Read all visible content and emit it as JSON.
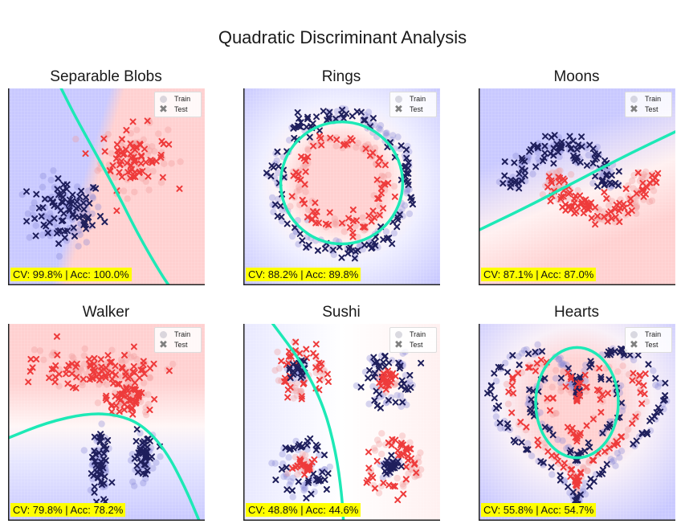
{
  "suptitle": "Quadratic Discriminant Analysis",
  "legend": {
    "train": "Train",
    "test": "Test"
  },
  "colors": {
    "class0": "#1f1f5c",
    "class1": "#ee3b3b",
    "train0": "#8a8ad8",
    "train1": "#f29a9a",
    "boundary": "#1de9b6",
    "score_bg": "#ffff00",
    "bg_blue": "#c8c8ff",
    "bg_red": "#ffd0d0"
  },
  "chart_data": [
    {
      "name": "blobs",
      "type": "scatter",
      "title": "Separable Blobs",
      "score": "CV: 99.8% | Acc: 100.0%",
      "xlim": [
        0,
        1
      ],
      "ylim": [
        0,
        1
      ],
      "clusters": [
        {
          "cls": 0,
          "shape": "blob",
          "cx": 0.29,
          "cy": 0.37,
          "rx": 0.19,
          "ry": 0.17
        },
        {
          "cls": 1,
          "shape": "blob",
          "cx": 0.64,
          "cy": 0.65,
          "rx": 0.17,
          "ry": 0.16
        }
      ],
      "boundary": [
        [
          0.27,
          1.0
        ],
        [
          0.34,
          0.86
        ],
        [
          0.44,
          0.68
        ],
        [
          0.55,
          0.48
        ],
        [
          0.66,
          0.26
        ],
        [
          0.77,
          0.07
        ],
        [
          0.83,
          -0.02
        ]
      ]
    },
    {
      "name": "rings",
      "type": "scatter",
      "title": "Rings",
      "score": "CV: 88.2% | Acc: 89.8%",
      "xlim": [
        0,
        1
      ],
      "ylim": [
        0,
        1
      ],
      "clusters": [
        {
          "cls": 0,
          "shape": "ring",
          "cx": 0.5,
          "cy": 0.52,
          "r": 0.34,
          "w": 0.05
        },
        {
          "cls": 1,
          "shape": "ring",
          "cx": 0.5,
          "cy": 0.52,
          "r": 0.22,
          "w": 0.05
        }
      ],
      "boundary": {
        "cx": 0.5,
        "cy": 0.52,
        "r": 0.31
      }
    },
    {
      "name": "moons",
      "type": "scatter",
      "title": "Moons",
      "score": "CV: 87.1% | Acc: 87.0%",
      "xlim": [
        0,
        1
      ],
      "ylim": [
        0,
        1
      ],
      "clusters": [
        {
          "cls": 0,
          "shape": "arc",
          "cx": 0.42,
          "cy": 0.45,
          "r": 0.25,
          "a0": 10,
          "a1": 170,
          "w": 0.06
        },
        {
          "cls": 1,
          "shape": "arc",
          "cx": 0.62,
          "cy": 0.62,
          "r": 0.25,
          "a0": 190,
          "a1": 350,
          "w": 0.06
        }
      ],
      "boundary": [
        [
          0.0,
          0.28
        ],
        [
          0.25,
          0.4
        ],
        [
          0.5,
          0.53
        ],
        [
          0.75,
          0.66
        ],
        [
          1.0,
          0.78
        ]
      ]
    },
    {
      "name": "walker",
      "type": "scatter",
      "title": "Walker",
      "score": "CV: 79.8% | Acc: 78.2%",
      "xlim": [
        0,
        1
      ],
      "ylim": [
        0,
        1
      ],
      "clusters": [
        {
          "cls": 1,
          "shape": "blob",
          "cx": 0.48,
          "cy": 0.76,
          "rx": 0.3,
          "ry": 0.1
        },
        {
          "cls": 1,
          "shape": "blob",
          "cx": 0.6,
          "cy": 0.62,
          "rx": 0.12,
          "ry": 0.08
        },
        {
          "cls": 0,
          "shape": "blob",
          "cx": 0.47,
          "cy": 0.28,
          "rx": 0.05,
          "ry": 0.17
        },
        {
          "cls": 0,
          "shape": "blob",
          "cx": 0.69,
          "cy": 0.33,
          "rx": 0.05,
          "ry": 0.13
        }
      ],
      "boundary": [
        [
          0.0,
          0.42
        ],
        [
          0.2,
          0.5
        ],
        [
          0.4,
          0.545
        ],
        [
          0.55,
          0.54
        ],
        [
          0.68,
          0.49
        ],
        [
          0.8,
          0.36
        ],
        [
          0.9,
          0.17
        ],
        [
          0.98,
          -0.02
        ]
      ]
    },
    {
      "name": "sushi",
      "type": "scatter",
      "title": "Sushi",
      "score": "CV: 48.8% | Acc: 44.6%",
      "xlim": [
        0,
        1
      ],
      "ylim": [
        0,
        1
      ],
      "clusters": [
        {
          "cls": 1,
          "shape": "ring",
          "cx": 0.29,
          "cy": 0.76,
          "r": 0.11,
          "w": 0.05
        },
        {
          "cls": 0,
          "shape": "blob",
          "cx": 0.29,
          "cy": 0.76,
          "rx": 0.05,
          "ry": 0.05
        },
        {
          "cls": 0,
          "shape": "ring",
          "cx": 0.73,
          "cy": 0.71,
          "r": 0.11,
          "w": 0.05
        },
        {
          "cls": 1,
          "shape": "blob",
          "cx": 0.73,
          "cy": 0.71,
          "rx": 0.05,
          "ry": 0.05
        },
        {
          "cls": 0,
          "shape": "ring",
          "cx": 0.3,
          "cy": 0.27,
          "r": 0.11,
          "w": 0.05
        },
        {
          "cls": 1,
          "shape": "blob",
          "cx": 0.3,
          "cy": 0.27,
          "rx": 0.05,
          "ry": 0.05
        },
        {
          "cls": 1,
          "shape": "ring",
          "cx": 0.75,
          "cy": 0.28,
          "r": 0.12,
          "w": 0.05
        },
        {
          "cls": 0,
          "shape": "blob",
          "cx": 0.75,
          "cy": 0.28,
          "rx": 0.05,
          "ry": 0.05
        }
      ],
      "boundary": [
        [
          0.15,
          1.0
        ],
        [
          0.3,
          0.8
        ],
        [
          0.41,
          0.58
        ],
        [
          0.47,
          0.35
        ],
        [
          0.5,
          0.14
        ],
        [
          0.51,
          -0.02
        ]
      ]
    },
    {
      "name": "hearts",
      "type": "scatter",
      "title": "Hearts",
      "score": "CV: 55.8% | Acc: 54.7%",
      "xlim": [
        0,
        1
      ],
      "ylim": [
        0,
        1
      ],
      "clusters": [
        {
          "cls": 0,
          "shape": "heart",
          "cx": 0.5,
          "cy": 0.48,
          "s": 0.46,
          "w": 0.035
        },
        {
          "cls": 1,
          "shape": "heart",
          "cx": 0.5,
          "cy": 0.5,
          "s": 0.36,
          "w": 0.035
        },
        {
          "cls": 0,
          "shape": "heart",
          "cx": 0.5,
          "cy": 0.52,
          "s": 0.25,
          "w": 0.03
        },
        {
          "cls": 1,
          "shape": "heart",
          "cx": 0.5,
          "cy": 0.55,
          "s": 0.15,
          "w": 0.03
        }
      ],
      "boundary": {
        "cx": 0.5,
        "cy": 0.6,
        "rx": 0.21,
        "ry": 0.28
      }
    }
  ]
}
